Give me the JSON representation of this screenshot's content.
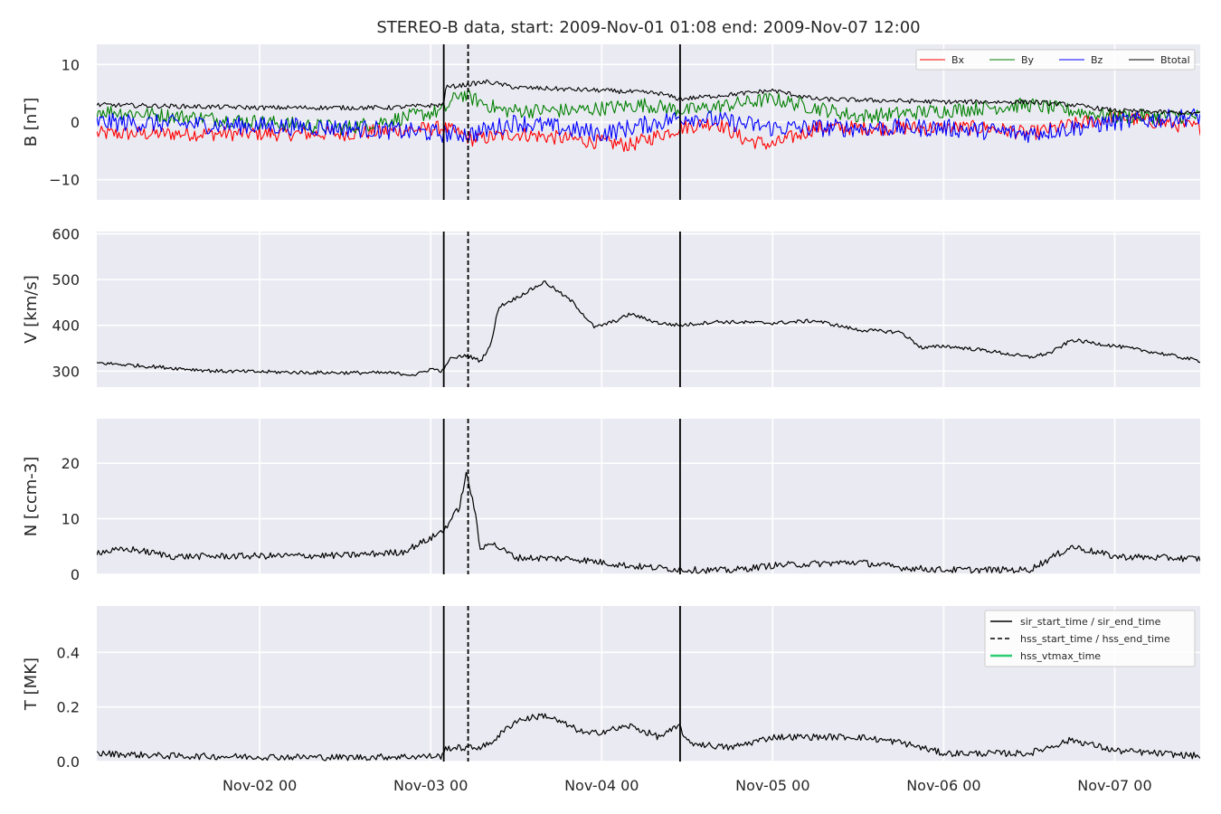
{
  "title": "STEREO-B data, start: 2009-Nov-01 01:08  end: 2009-Nov-07 12:00",
  "colors": {
    "panel_bg": "#eaeaf2",
    "grid": "#ffffff",
    "bx": "#ff0000",
    "by": "#008000",
    "bz": "#0000ff",
    "btotal": "#000000",
    "event_lines": "#000000",
    "vtmax": "#2ecc71"
  },
  "chart_data": [
    {
      "type": "line",
      "panel": "B",
      "ylabel": "B [nT]",
      "ylim": [
        -13.5,
        13.5
      ],
      "yticks": [
        10,
        0,
        -10
      ],
      "ytick_labels": [
        "10",
        "0",
        "−10"
      ],
      "series": [
        {
          "name": "Bx",
          "color": "#ff0000",
          "key": "Bx"
        },
        {
          "name": "By",
          "color": "#008000",
          "key": "By"
        },
        {
          "name": "Bz",
          "color": "#0000ff",
          "key": "Bz"
        },
        {
          "name": "Btotal",
          "color": "#000000",
          "key": "Btotal"
        }
      ],
      "legend_position": "top-right"
    },
    {
      "type": "line",
      "panel": "V",
      "ylabel": "V [km/s]",
      "ylim": [
        265,
        605
      ],
      "yticks": [
        600,
        500,
        400,
        300
      ],
      "ytick_labels": [
        "600",
        "500",
        "400",
        "300"
      ],
      "series_key": "V"
    },
    {
      "type": "line",
      "panel": "N",
      "ylabel": "N [ccm-3]",
      "ylim": [
        0,
        28
      ],
      "yticks": [
        20,
        10,
        0
      ],
      "ytick_labels": [
        "20",
        "10",
        "0"
      ],
      "series_key": "N"
    },
    {
      "type": "line",
      "panel": "T",
      "ylabel": "T [MK]",
      "ylim": [
        0,
        0.57
      ],
      "yticks": [
        0.4,
        0.2,
        0.0
      ],
      "ytick_labels": [
        "0.4",
        "0.2",
        "0.0"
      ],
      "series_key": "T",
      "legend_position": "top-right"
    }
  ],
  "x_axis": {
    "start": "2009-11-01 01:08",
    "end": "2009-11-07 12:00",
    "ticks": [
      {
        "at": "2009-11-02 00:00",
        "label": "Nov-02 00"
      },
      {
        "at": "2009-11-03 00:00",
        "label": "Nov-03 00"
      },
      {
        "at": "2009-11-04 00:00",
        "label": "Nov-04 00"
      },
      {
        "at": "2009-11-05 00:00",
        "label": "Nov-05 00"
      },
      {
        "at": "2009-11-06 00:00",
        "label": "Nov-06 00"
      },
      {
        "at": "2009-11-07 00:00",
        "label": "Nov-07 00"
      }
    ]
  },
  "events": {
    "sir_start_time": "2009-11-03 01:50",
    "hss_start_time": "2009-11-03 05:15",
    "sir_end_time": "2009-11-04 11:00"
  },
  "legend_T": [
    {
      "label": "sir_start_time / sir_end_time",
      "style": "solid",
      "color": "#000000"
    },
    {
      "label": "hss_start_time / hss_end_time",
      "style": "dashed",
      "color": "#000000"
    },
    {
      "label": "hss_vtmax_time",
      "style": "solid",
      "color": "#2ecc71"
    }
  ],
  "series_anchors": {
    "V": [
      [
        "2009-11-01 01:08",
        318
      ],
      [
        "2009-11-01 06:00",
        313
      ],
      [
        "2009-11-01 18:00",
        300
      ],
      [
        "2009-11-02 06:00",
        297
      ],
      [
        "2009-11-02 18:00",
        296
      ],
      [
        "2009-11-02 22:00",
        292
      ],
      [
        "2009-11-03 00:00",
        305
      ],
      [
        "2009-11-03 01:50",
        300
      ],
      [
        "2009-11-03 02:30",
        325
      ],
      [
        "2009-11-03 05:00",
        335
      ],
      [
        "2009-11-03 07:00",
        322
      ],
      [
        "2009-11-03 08:30",
        360
      ],
      [
        "2009-11-03 09:30",
        440
      ],
      [
        "2009-11-03 12:00",
        460
      ],
      [
        "2009-11-03 16:00",
        495
      ],
      [
        "2009-11-03 20:00",
        450
      ],
      [
        "2009-11-03 23:00",
        395
      ],
      [
        "2009-11-04 02:00",
        410
      ],
      [
        "2009-11-04 04:00",
        425
      ],
      [
        "2009-11-04 08:00",
        405
      ],
      [
        "2009-11-04 11:00",
        400
      ],
      [
        "2009-11-04 16:00",
        408
      ],
      [
        "2009-11-05 00:00",
        405
      ],
      [
        "2009-11-05 06:00",
        410
      ],
      [
        "2009-11-05 12:00",
        390
      ],
      [
        "2009-11-05 18:00",
        385
      ],
      [
        "2009-11-05 21:00",
        350
      ],
      [
        "2009-11-06 00:00",
        355
      ],
      [
        "2009-11-06 06:00",
        345
      ],
      [
        "2009-11-06 12:00",
        330
      ],
      [
        "2009-11-06 15:00",
        340
      ],
      [
        "2009-11-06 18:00",
        368
      ],
      [
        "2009-11-07 00:00",
        355
      ],
      [
        "2009-11-07 06:00",
        340
      ],
      [
        "2009-11-07 12:00",
        322
      ]
    ],
    "N": [
      [
        "2009-11-01 01:08",
        4
      ],
      [
        "2009-11-01 06:00",
        4.5
      ],
      [
        "2009-11-01 12:00",
        3.2
      ],
      [
        "2009-11-02 12:00",
        3.4
      ],
      [
        "2009-11-02 20:00",
        4
      ],
      [
        "2009-11-03 00:00",
        6.5
      ],
      [
        "2009-11-03 01:50",
        8
      ],
      [
        "2009-11-03 04:00",
        12
      ],
      [
        "2009-11-03 05:00",
        18
      ],
      [
        "2009-11-03 06:00",
        13
      ],
      [
        "2009-11-03 07:00",
        4
      ],
      [
        "2009-11-03 08:00",
        6
      ],
      [
        "2009-11-03 12:00",
        3
      ],
      [
        "2009-11-03 20:00",
        2.8
      ],
      [
        "2009-11-04 04:00",
        1.5
      ],
      [
        "2009-11-04 12:00",
        0.8
      ],
      [
        "2009-11-04 18:00",
        0.7
      ],
      [
        "2009-11-05 00:00",
        1.6
      ],
      [
        "2009-11-05 12:00",
        2.2
      ],
      [
        "2009-11-05 18:00",
        1.2
      ],
      [
        "2009-11-06 00:00",
        0.8
      ],
      [
        "2009-11-06 12:00",
        0.8
      ],
      [
        "2009-11-06 18:00",
        5
      ],
      [
        "2009-11-07 00:00",
        3.2
      ],
      [
        "2009-11-07 12:00",
        2.8
      ]
    ],
    "T": [
      [
        "2009-11-01 01:08",
        0.03
      ],
      [
        "2009-11-01 12:00",
        0.02
      ],
      [
        "2009-11-02 12:00",
        0.015
      ],
      [
        "2009-11-03 01:50",
        0.02
      ],
      [
        "2009-11-03 02:00",
        0.05
      ],
      [
        "2009-11-03 06:00",
        0.05
      ],
      [
        "2009-11-03 08:00",
        0.06
      ],
      [
        "2009-11-03 12:00",
        0.15
      ],
      [
        "2009-11-03 16:00",
        0.17
      ],
      [
        "2009-11-03 22:00",
        0.1
      ],
      [
        "2009-11-04 04:00",
        0.13
      ],
      [
        "2009-11-04 08:00",
        0.09
      ],
      [
        "2009-11-04 11:00",
        0.13
      ],
      [
        "2009-11-04 12:00",
        0.07
      ],
      [
        "2009-11-04 18:00",
        0.05
      ],
      [
        "2009-11-05 00:00",
        0.09
      ],
      [
        "2009-11-05 12:00",
        0.09
      ],
      [
        "2009-11-05 18:00",
        0.07
      ],
      [
        "2009-11-06 00:00",
        0.03
      ],
      [
        "2009-11-06 12:00",
        0.03
      ],
      [
        "2009-11-06 18:00",
        0.08
      ],
      [
        "2009-11-07 00:00",
        0.04
      ],
      [
        "2009-11-07 12:00",
        0.02
      ]
    ],
    "Bx": [
      [
        "2009-11-01 01:08",
        -2
      ],
      [
        "2009-11-02 12:00",
        -2
      ],
      [
        "2009-11-03 01:50",
        -1
      ],
      [
        "2009-11-03 06:00",
        -3
      ],
      [
        "2009-11-03 12:00",
        -2
      ],
      [
        "2009-11-03 20:00",
        -3
      ],
      [
        "2009-11-04 04:00",
        -4
      ],
      [
        "2009-11-04 11:00",
        -1
      ],
      [
        "2009-11-04 16:00",
        0
      ],
      [
        "2009-11-04 20:00",
        -3
      ],
      [
        "2009-11-05 00:00",
        -4
      ],
      [
        "2009-11-05 06:00",
        -1
      ],
      [
        "2009-11-05 18:00",
        -1
      ],
      [
        "2009-11-06 06:00",
        -1
      ],
      [
        "2009-11-06 12:00",
        -2
      ],
      [
        "2009-11-07 00:00",
        1
      ],
      [
        "2009-11-07 12:00",
        -1
      ]
    ],
    "By": [
      [
        "2009-11-01 01:08",
        2
      ],
      [
        "2009-11-02 12:00",
        -1
      ],
      [
        "2009-11-03 01:50",
        2
      ],
      [
        "2009-11-03 04:00",
        5
      ],
      [
        "2009-11-03 10:00",
        2
      ],
      [
        "2009-11-03 20:00",
        2
      ],
      [
        "2009-11-04 06:00",
        3
      ],
      [
        "2009-11-04 12:00",
        2
      ],
      [
        "2009-11-05 00:00",
        4
      ],
      [
        "2009-11-05 12:00",
        1
      ],
      [
        "2009-11-06 00:00",
        2
      ],
      [
        "2009-11-06 12:00",
        3
      ],
      [
        "2009-11-07 00:00",
        1
      ],
      [
        "2009-11-07 12:00",
        1
      ]
    ],
    "Bz": [
      [
        "2009-11-01 01:08",
        0
      ],
      [
        "2009-11-02 12:00",
        -1
      ],
      [
        "2009-11-03 01:50",
        -2
      ],
      [
        "2009-11-03 06:00",
        -2
      ],
      [
        "2009-11-03 12:00",
        0
      ],
      [
        "2009-11-04 00:00",
        -2
      ],
      [
        "2009-11-04 12:00",
        1
      ],
      [
        "2009-11-05 00:00",
        -1
      ],
      [
        "2009-11-05 12:00",
        -1
      ],
      [
        "2009-11-06 00:00",
        -1
      ],
      [
        "2009-11-06 12:00",
        -2
      ],
      [
        "2009-11-07 00:00",
        0
      ],
      [
        "2009-11-07 12:00",
        1
      ]
    ],
    "Btotal": [
      [
        "2009-11-01 01:08",
        3
      ],
      [
        "2009-11-02 00:00",
        2.5
      ],
      [
        "2009-11-02 18:00",
        2.5
      ],
      [
        "2009-11-03 01:50",
        3
      ],
      [
        "2009-11-03 02:00",
        6
      ],
      [
        "2009-11-03 08:00",
        7
      ],
      [
        "2009-11-03 12:00",
        6
      ],
      [
        "2009-11-04 00:00",
        5.5
      ],
      [
        "2009-11-04 08:00",
        5
      ],
      [
        "2009-11-04 11:00",
        4
      ],
      [
        "2009-11-04 20:00",
        5
      ],
      [
        "2009-11-05 00:00",
        5.5
      ],
      [
        "2009-11-05 06:00",
        4
      ],
      [
        "2009-11-06 00:00",
        3.5
      ],
      [
        "2009-11-06 12:00",
        3.5
      ],
      [
        "2009-11-06 18:00",
        3
      ],
      [
        "2009-11-07 00:00",
        2
      ],
      [
        "2009-11-07 12:00",
        1.5
      ]
    ]
  },
  "series_noise": {
    "V": 4,
    "N": 0.6,
    "T": 0.012,
    "Bx": 1.3,
    "By": 1.3,
    "Bz": 1.6,
    "Btotal": 0.4
  }
}
